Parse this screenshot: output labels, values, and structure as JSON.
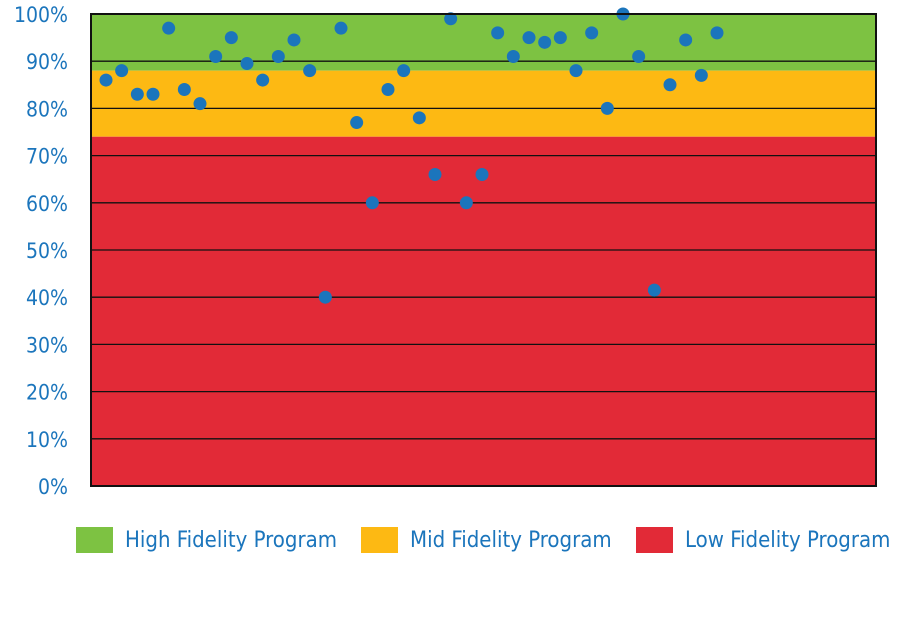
{
  "chart_data": {
    "type": "scatter",
    "title": "",
    "xlabel": "",
    "ylabel": "",
    "ylim": [
      0,
      100
    ],
    "y_ticks": [
      "0%",
      "10%",
      "20%",
      "30%",
      "40%",
      "50%",
      "60%",
      "70%",
      "80%",
      "90%",
      "100%"
    ],
    "grid": true,
    "bands": [
      {
        "name": "High Fidelity Program",
        "from": 88,
        "to": 100,
        "color": "#7dc242"
      },
      {
        "name": "Mid Fidelity Program",
        "from": 74,
        "to": 88,
        "color": "#fdb913"
      },
      {
        "name": "Low Fidelity Program",
        "from": 0,
        "to": 74,
        "color": "#e22a37"
      }
    ],
    "point_color": "#1b75bc",
    "text_color": "#1b75bc",
    "points": [
      86,
      88,
      83,
      83,
      97,
      84,
      81,
      91,
      95,
      89.5,
      86,
      91,
      94.5,
      88,
      40,
      97,
      77,
      60,
      84,
      88,
      78,
      66,
      99,
      60,
      66,
      96,
      91,
      95,
      94,
      95,
      88,
      96,
      80,
      100,
      91,
      41.5,
      85,
      94.5,
      87,
      96
    ]
  },
  "legend": {
    "items": [
      {
        "label": "High Fidelity Program",
        "color": "#7dc242"
      },
      {
        "label": "Mid Fidelity Program",
        "color": "#fdb913"
      },
      {
        "label": "Low Fidelity Program",
        "color": "#e22a37"
      }
    ]
  }
}
